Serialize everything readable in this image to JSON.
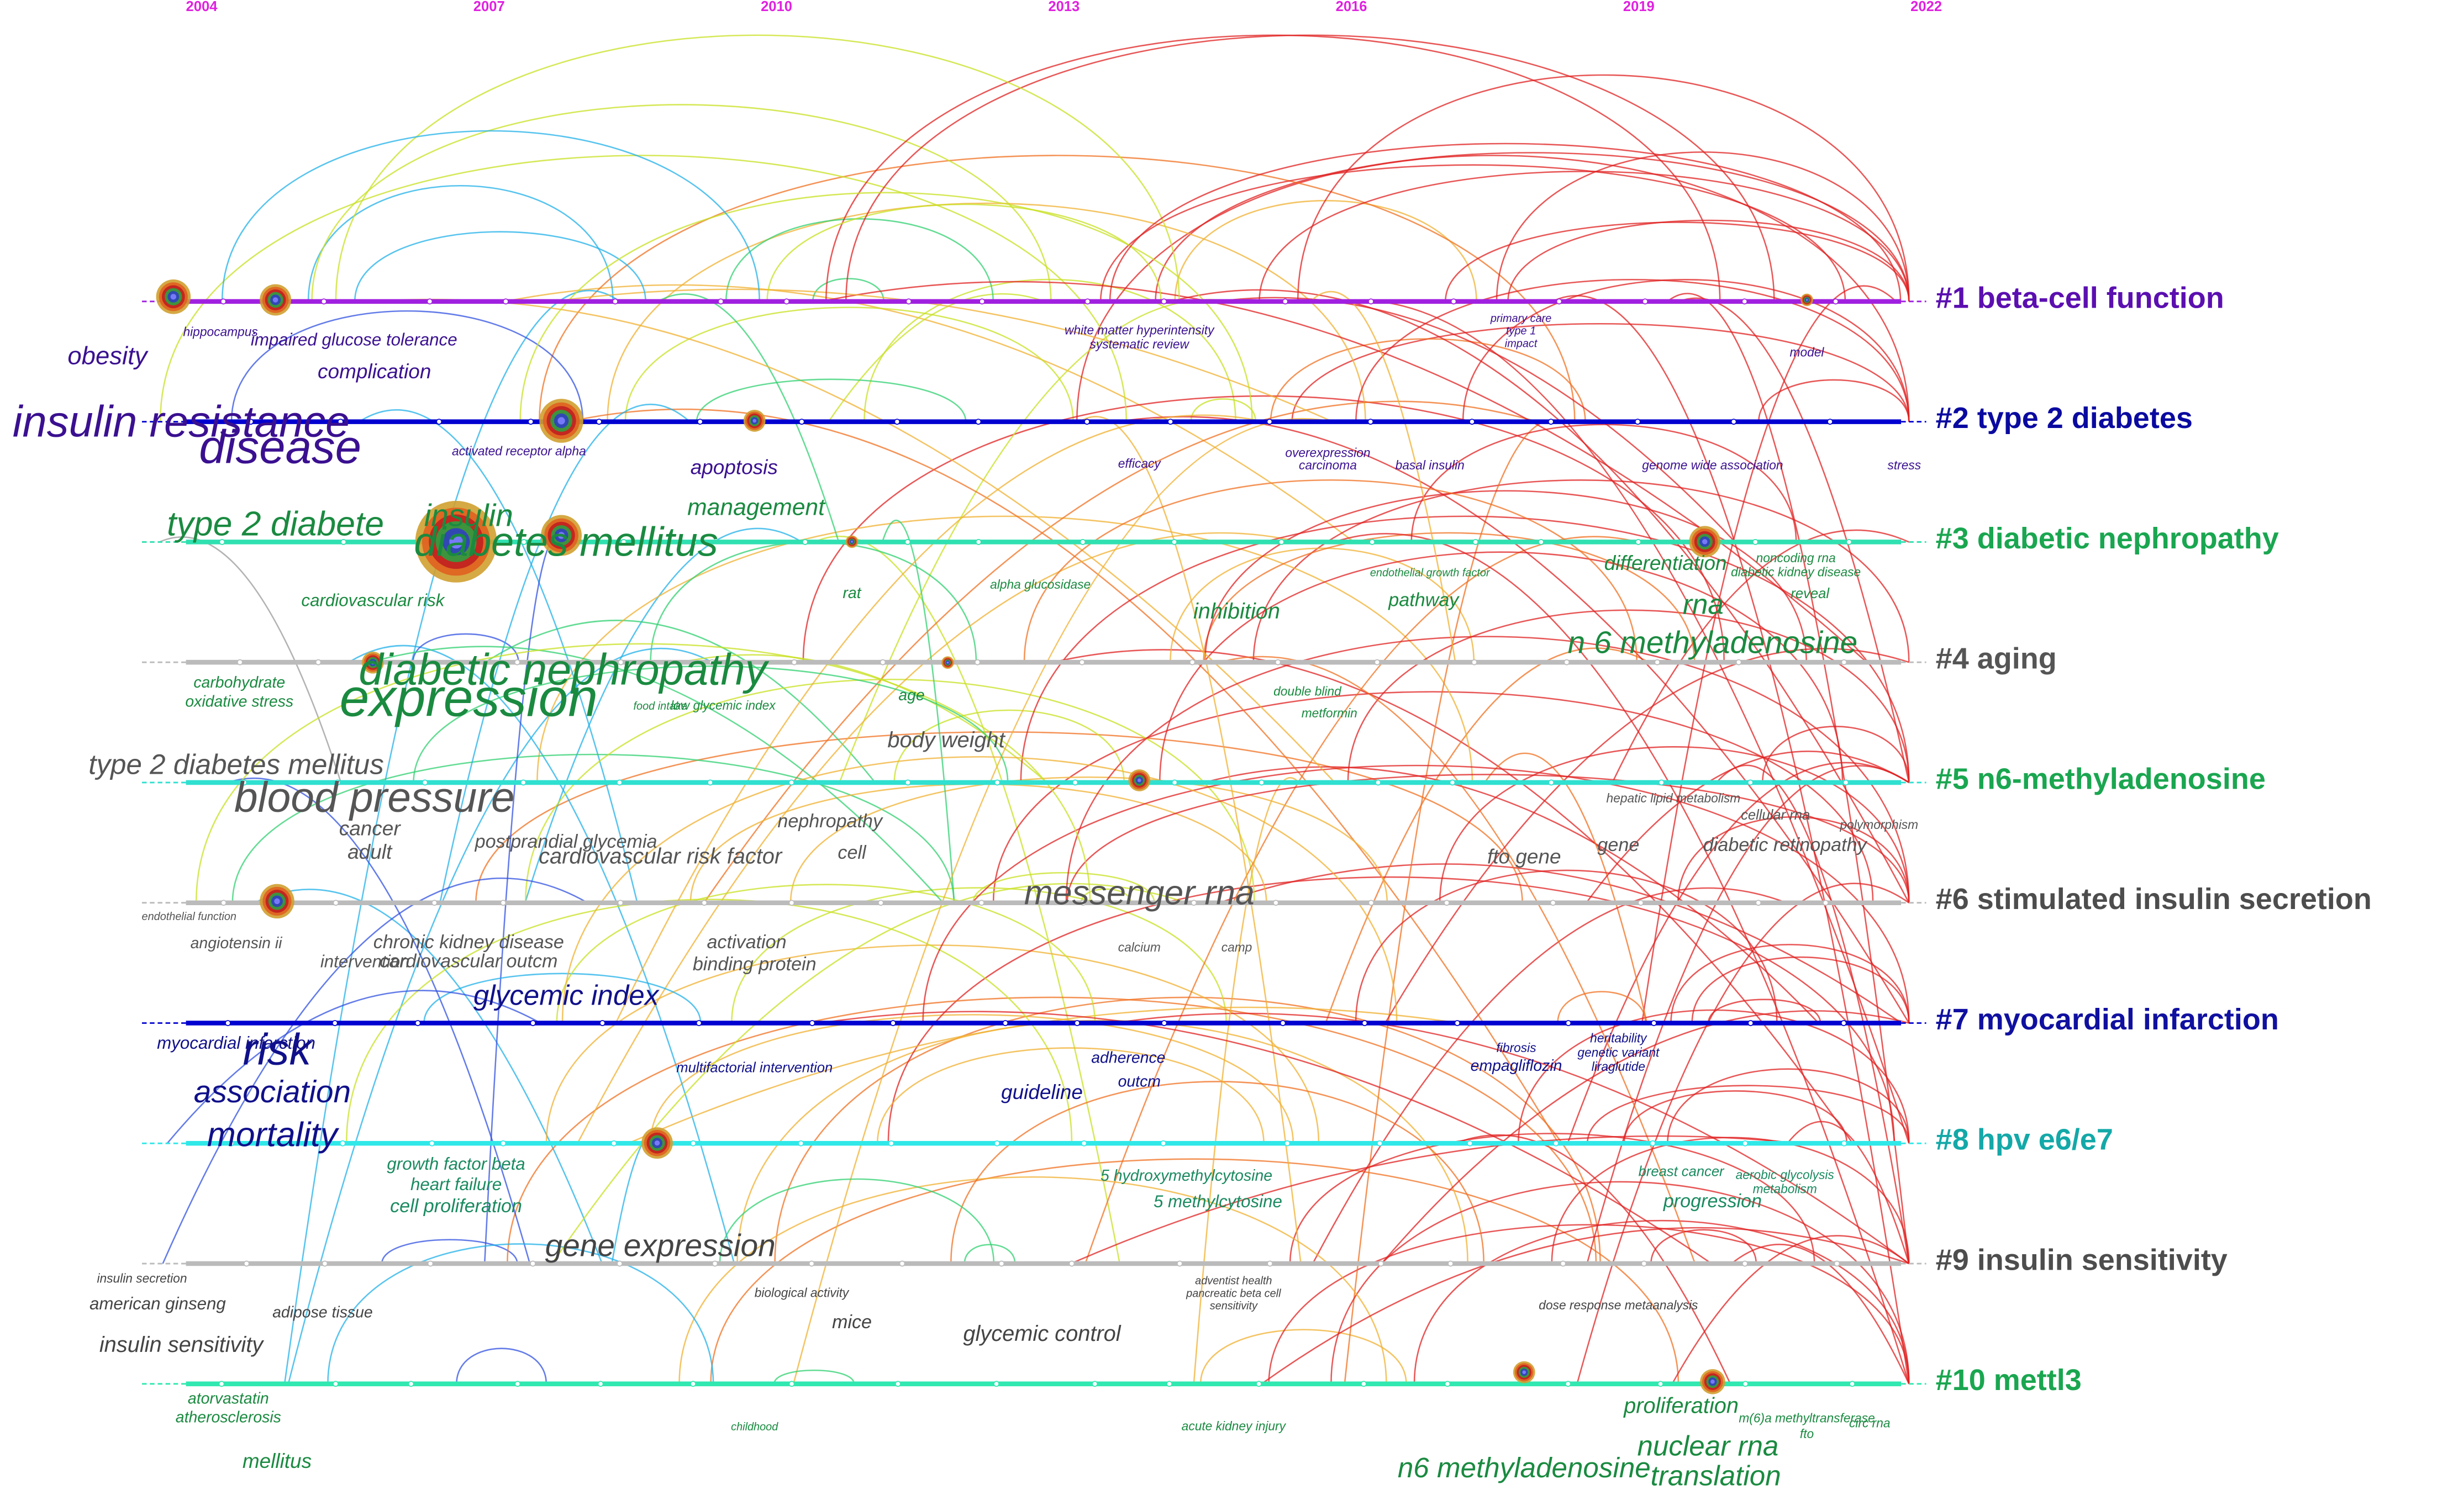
{
  "years": [
    2004,
    2007,
    2010,
    2013,
    2016,
    2019,
    2022
  ],
  "clusters": [
    {
      "label": "#1 beta-cell function",
      "color": "#5b0fb0",
      "line_color": "#a020e0",
      "keyword_color": "#3a1090",
      "keywords": [
        "obesity",
        "impaired glucose tolerance",
        "complication",
        "hippocampus",
        "white matter hyperintensity",
        "systematic review",
        "primary care",
        "type 1",
        "impact",
        "model"
      ]
    },
    {
      "label": "#2 type 2 diabetes",
      "color": "#0a0aa0",
      "line_color": "#0000d0",
      "keyword_color": "#3a1090",
      "keywords": [
        "insulin resistance",
        "disease",
        "apoptosis",
        "efficacy",
        "overexpression",
        "carcinoma",
        "basal insulin",
        "genome wide association",
        "stress",
        "activated receptor alpha"
      ]
    },
    {
      "label": "#3 diabetic nephropathy",
      "color": "#1aa650",
      "line_color": "#30e0b0",
      "keyword_color": "#1a8a40",
      "keywords": [
        "type 2 diabete",
        "insulin",
        "diabetes mellitus",
        "management",
        "cardiovascular risk",
        "rat",
        "alpha glucosidase",
        "inhibition",
        "pathway",
        "differentiation",
        "rna",
        "noncoding rna",
        "diabetic kidney disease",
        "reveal",
        "endothelial growth factor"
      ]
    },
    {
      "label": "#4 aging",
      "color": "#555555",
      "line_color": "#bbbbbb",
      "keyword_color": "#1a8a40",
      "keywords": [
        "diabetic nephropathy",
        "expression",
        "n 6 methyladenosine",
        "carbohydrate",
        "oxidative stress",
        "age",
        "double blind",
        "metformin",
        "low glycemic index",
        "food intake"
      ]
    },
    {
      "label": "#5 n6-methyladenosine",
      "color": "#1aa650",
      "line_color": "#30e0d0",
      "keyword_color": "#555555",
      "keywords": [
        "type 2 diabetes mellitus",
        "blood pressure",
        "body weight",
        "cancer",
        "adult",
        "postprandial glycemia",
        "cardiovascular risk factor",
        "nephropathy",
        "cell",
        "fto gene",
        "gene",
        "diabetic retinopathy",
        "polymorphism",
        "hepatic lipid metabolism",
        "cellular rna"
      ]
    },
    {
      "label": "#6 stimulated insulin secretion",
      "color": "#4d4d4d",
      "line_color": "#bbbbbb",
      "keyword_color": "#555555",
      "keywords": [
        "messenger rna",
        "angiotensin ii",
        "chronic kidney disease",
        "cardiovascular outcm",
        "intervention",
        "activation",
        "binding protein",
        "calcium",
        "camp",
        "endothelial function"
      ]
    },
    {
      "label": "#7 myocardial infarction",
      "color": "#1010a0",
      "line_color": "#0000d0",
      "keyword_color": "#10108a",
      "keywords": [
        "glycemic index",
        "risk",
        "association",
        "mortality",
        "myocardial infarction",
        "multifactorial intervention",
        "guideline",
        "adherence",
        "outcm",
        "fibrosis",
        "empagliflozin",
        "heritability",
        "genetic variant",
        "liraglutide"
      ]
    },
    {
      "label": "#8 hpv e6/e7",
      "color": "#14a8a8",
      "line_color": "#30e8e8",
      "keyword_color": "#1a8a60",
      "keywords": [
        "growth factor beta",
        "heart failure",
        "cell proliferation",
        "5 hydroxymethylcytosine",
        "5 methylcytosine",
        "breast cancer",
        "progression",
        "aerobic glycolysis",
        "metabolism"
      ]
    },
    {
      "label": "#9 insulin sensitivity",
      "color": "#4d4d4d",
      "line_color": "#bbbbbb",
      "keyword_color": "#444444",
      "keywords": [
        "gene expression",
        "insulin secretion",
        "american ginseng",
        "adipose tissue",
        "insulin sensitivity",
        "biological activity",
        "mice",
        "glycemic control",
        "adventist health",
        "pancreatic beta cell",
        "sensitivity",
        "dose response metaanalysis"
      ]
    },
    {
      "label": "#10 mettl3",
      "color": "#1aa650",
      "line_color": "#30e8b0",
      "keyword_color": "#1a8a40",
      "keywords": [
        "atorvastatin",
        "atherosclerosis",
        "mellitus",
        "childhood",
        "acute kidney injury",
        "n6 methyladenosine",
        "proliferation",
        "nuclear rna",
        "translation",
        "m(6)a methyltransferase",
        "fto",
        "circ rna"
      ]
    }
  ]
}
